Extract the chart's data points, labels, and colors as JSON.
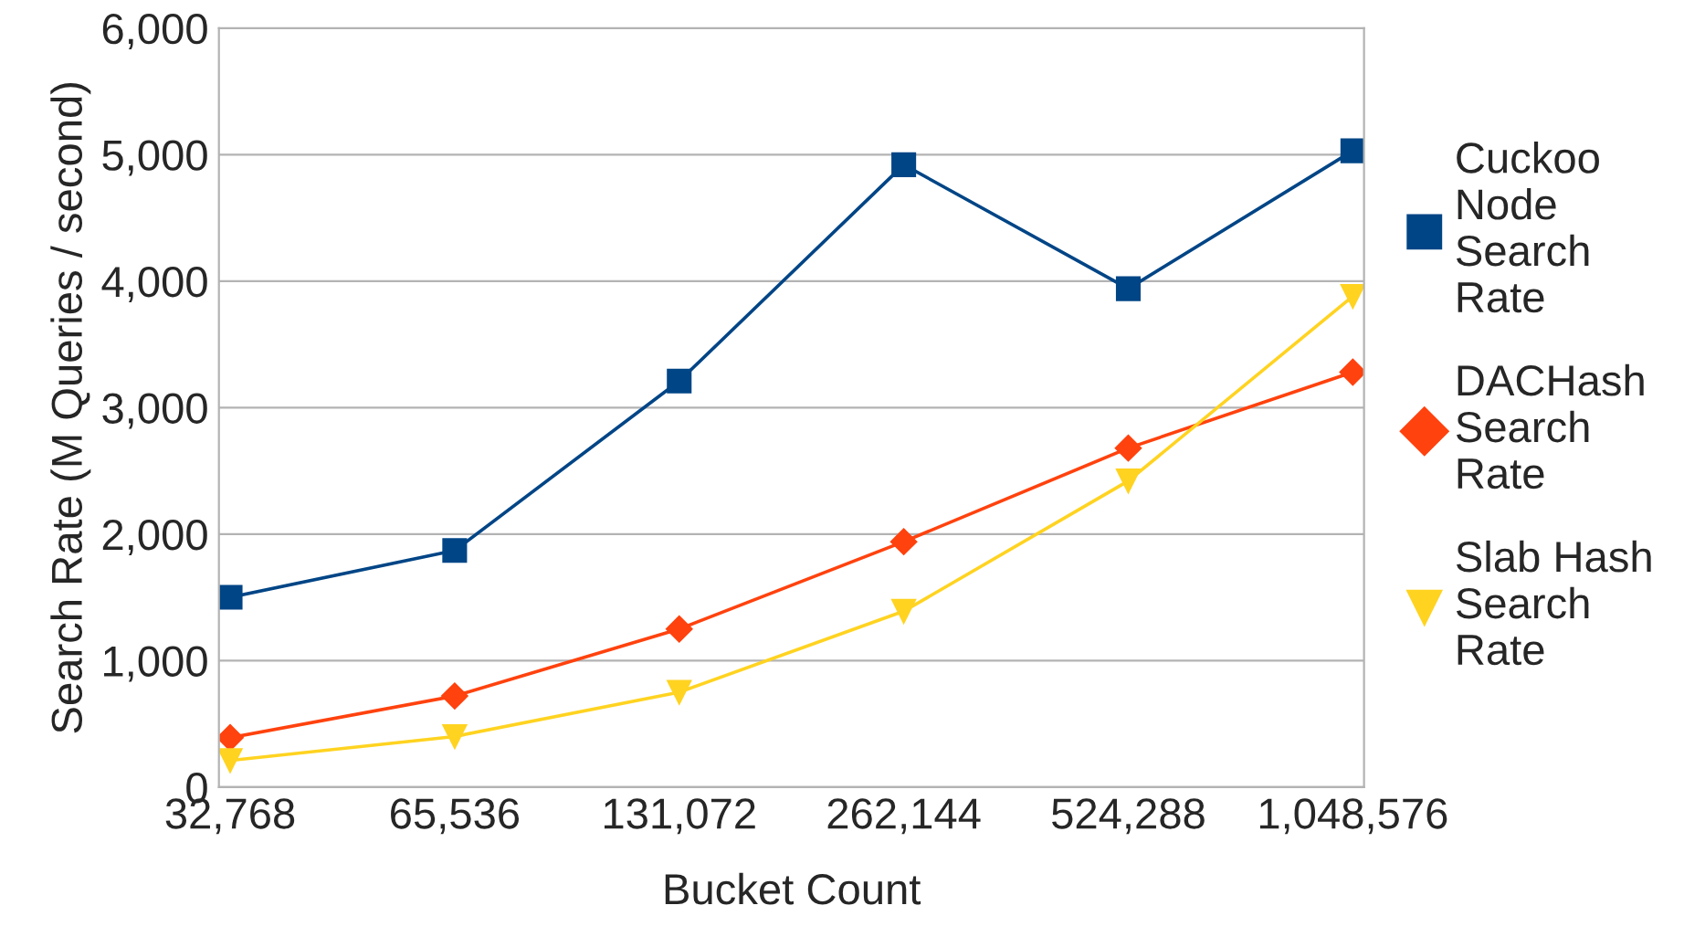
{
  "chart_data": {
    "type": "line",
    "xlabel": "Bucket Count",
    "ylabel": "Search Rate (M Queries / second)",
    "categories": [
      "32,768",
      "65,536",
      "131,072",
      "262,144",
      "524,288",
      "1,048,576"
    ],
    "series": [
      {
        "name": "Cuckoo Node Search Rate",
        "color": "#004586",
        "marker": "square",
        "values": [
          1500,
          1870,
          3210,
          4920,
          3940,
          5030
        ]
      },
      {
        "name": "DACHash Search Rate",
        "color": "#ff420e",
        "marker": "diamond",
        "values": [
          390,
          720,
          1250,
          1940,
          2680,
          3280
        ]
      },
      {
        "name": "Slab Hash Search Rate",
        "color": "#ffd320",
        "marker": "triangle",
        "values": [
          210,
          400,
          750,
          1390,
          2420,
          3880
        ]
      }
    ],
    "ylim": [
      0,
      6000
    ],
    "yticks": [
      {
        "value": 0,
        "label": "0"
      },
      {
        "value": 1000,
        "label": "1,000"
      },
      {
        "value": 2000,
        "label": "2,000"
      },
      {
        "value": 3000,
        "label": "3,000"
      },
      {
        "value": 4000,
        "label": "4,000"
      },
      {
        "value": 5000,
        "label": "5,000"
      },
      {
        "value": 6000,
        "label": "6,000"
      }
    ],
    "grid": "y",
    "legend": "right",
    "line_style": "solid"
  }
}
